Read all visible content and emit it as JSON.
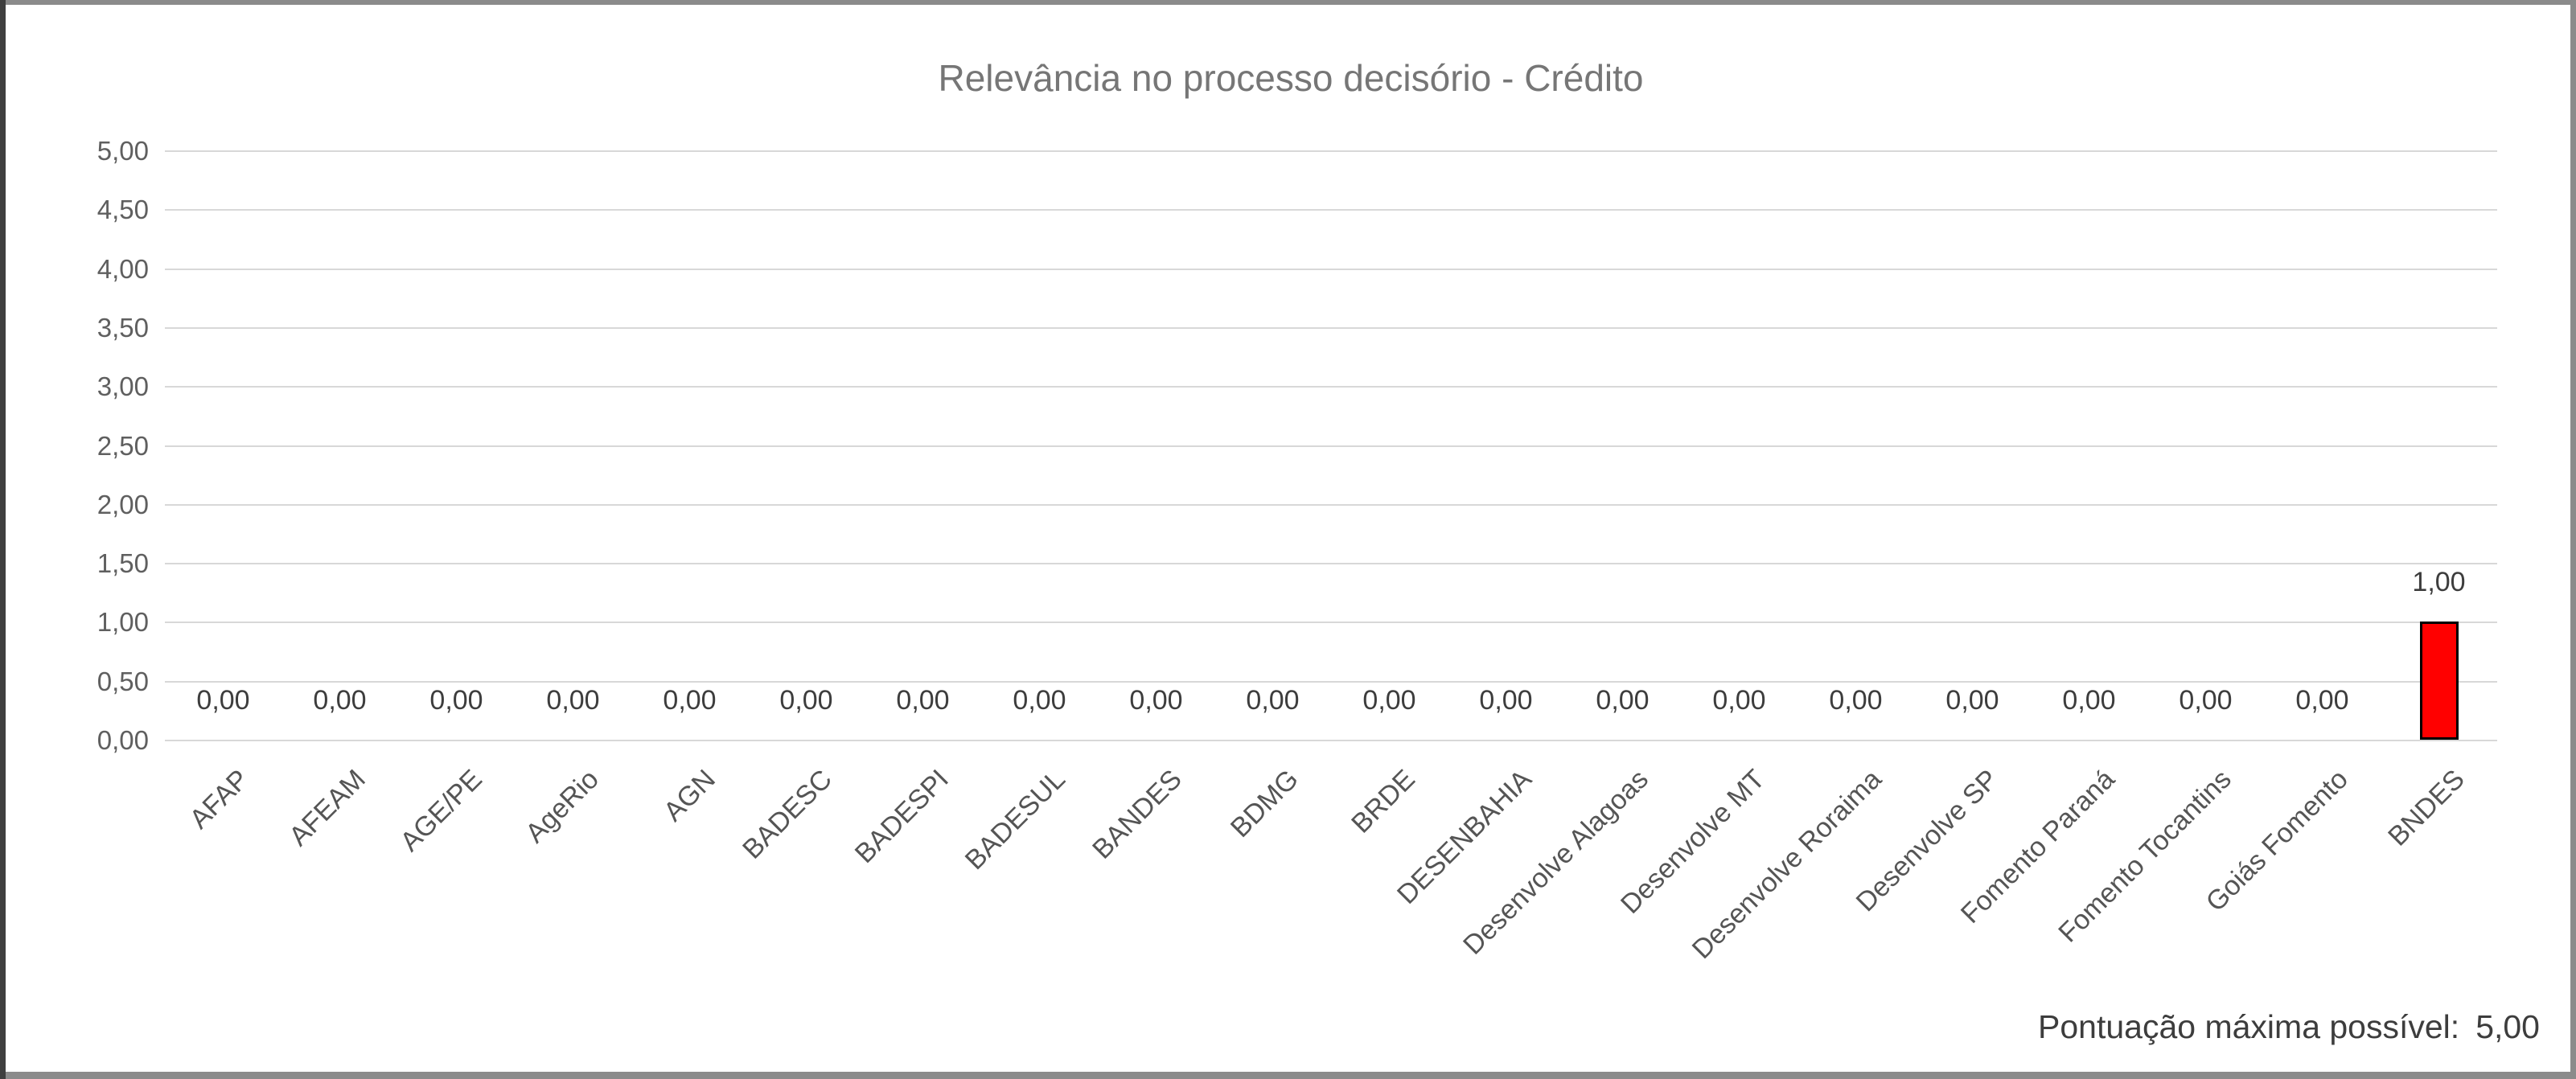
{
  "chart": {
    "title": "Relevância no processo decisório - Crédito",
    "note": {
      "label": "Pontuação máxima possível:",
      "value": "5,00"
    },
    "y_axis": {
      "tick_labels": [
        "5,00",
        "4,50",
        "4,00",
        "3,50",
        "3,00",
        "2,50",
        "2,00",
        "1,50",
        "1,00",
        "0,50",
        "0,00"
      ]
    },
    "categories": [
      "AFAP",
      "AFEAM",
      "AGE/PE",
      "AgeRio",
      "AGN",
      "BADESC",
      "BADESPI",
      "BADESUL",
      "BANDES",
      "BDMG",
      "BRDE",
      "DESENBAHIA",
      "Desenvolve Alagoas",
      "Desenvolve MT",
      "Desenvolve Roraima",
      "Desenvolve SP",
      "Fomento Paraná",
      "Fomento Tocantins",
      "Goiás Fomento",
      "BNDES"
    ],
    "value_labels": [
      "0,00",
      "0,00",
      "0,00",
      "0,00",
      "0,00",
      "0,00",
      "0,00",
      "0,00",
      "0,00",
      "0,00",
      "0,00",
      "0,00",
      "0,00",
      "0,00",
      "0,00",
      "0,00",
      "0,00",
      "0,00",
      "0,00",
      "1,00"
    ],
    "values": [
      0,
      0,
      0,
      0,
      0,
      0,
      0,
      0,
      0,
      0,
      0,
      0,
      0,
      0,
      0,
      0,
      0,
      0,
      0,
      1
    ],
    "colors": {
      "bar_fill": "#ff0000",
      "bar_border": "#000000",
      "gridline": "#d8d8d8",
      "title_text": "#767676",
      "axis_text": "#5f5f5f",
      "label_text": "#3d3d3d"
    }
  },
  "chart_data": {
    "type": "bar",
    "title": "Relevância no processo decisório - Crédito",
    "categories": [
      "AFAP",
      "AFEAM",
      "AGE/PE",
      "AgeRio",
      "AGN",
      "BADESC",
      "BADESPI",
      "BADESUL",
      "BANDES",
      "BDMG",
      "BRDE",
      "DESENBAHIA",
      "Desenvolve Alagoas",
      "Desenvolve MT",
      "Desenvolve Roraima",
      "Desenvolve SP",
      "Fomento Paraná",
      "Fomento Tocantins",
      "Goiás Fomento",
      "BNDES"
    ],
    "values": [
      0.0,
      0.0,
      0.0,
      0.0,
      0.0,
      0.0,
      0.0,
      0.0,
      0.0,
      0.0,
      0.0,
      0.0,
      0.0,
      0.0,
      0.0,
      0.0,
      0.0,
      0.0,
      0.0,
      1.0
    ],
    "xlabel": "",
    "ylabel": "",
    "ylim": [
      0,
      5
    ],
    "ytick_step": 0.5,
    "decimal_separator": ",",
    "grid": true,
    "legend": false,
    "data_labels": true,
    "annotations": [
      "Pontuação máxima possível:  5,00"
    ]
  }
}
